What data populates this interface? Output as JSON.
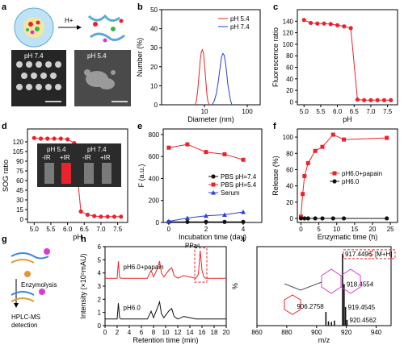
{
  "panel_labels": [
    "a",
    "b",
    "c",
    "d",
    "e",
    "f",
    "g",
    "h",
    "i"
  ],
  "panel_a": {
    "trigger": "H+",
    "tem_labels": [
      "pH 7.4",
      "pH 5.4"
    ]
  },
  "panel_d": {
    "inset_groups": [
      "pH 5.4",
      "pH 7.4"
    ],
    "inset_lanes": [
      "-IR",
      "+IR",
      "-IR",
      "+IR"
    ]
  },
  "panel_g": {
    "steps": [
      "Enzymolysis",
      "HPLC-MS",
      "detection"
    ]
  },
  "colors": {
    "red": "#e8242a",
    "blue": "#2a3fd6",
    "black": "#111111",
    "magenta": "#d93ad3"
  },
  "chart_data": [
    {
      "id": "b",
      "type": "line",
      "xlabel": "Diameter (nm)",
      "ylabel": "Number (%)",
      "xscale": "log",
      "xlim": [
        1,
        200
      ],
      "ylim": [
        0,
        50
      ],
      "xticks": [
        "10",
        "100"
      ],
      "yticks": [
        "0",
        "10",
        "20",
        "30",
        "40",
        "50"
      ],
      "legend_position": "top-right",
      "series": [
        {
          "name": "pH 5.4",
          "color": "#e8242a",
          "x": [
            6.0,
            6.5,
            7.0,
            7.5,
            8.0,
            8.5,
            9.0,
            9.5,
            10.0,
            10.5,
            11.0,
            11.5,
            12.0,
            13.0
          ],
          "y": [
            0,
            2,
            8,
            16,
            24,
            28,
            29,
            27,
            22,
            16,
            10,
            5,
            2,
            0
          ]
        },
        {
          "name": "pH 7.4",
          "color": "#2a3fd6",
          "x": [
            15,
            17,
            19,
            21,
            23,
            25,
            27,
            29,
            31,
            33,
            35,
            38,
            41,
            44
          ],
          "y": [
            0,
            2,
            6,
            12,
            19,
            25,
            27,
            26,
            22,
            17,
            11,
            6,
            2,
            0
          ]
        }
      ]
    },
    {
      "id": "c",
      "type": "scatter",
      "xlabel": "pH",
      "ylabel": "Fluorescence ratio",
      "xlim": [
        4.8,
        7.8
      ],
      "ylim": [
        -5,
        160
      ],
      "xticks": [
        "5.0",
        "5.5",
        "6.0",
        "6.5",
        "7.0",
        "7.5"
      ],
      "yticks": [
        "0",
        "20",
        "40",
        "60",
        "80",
        "100",
        "120",
        "140"
      ],
      "series": [
        {
          "name": "",
          "color": "#e8242a",
          "x": [
            5.0,
            5.2,
            5.4,
            5.6,
            5.8,
            6.0,
            6.2,
            6.4,
            6.6,
            6.8,
            7.0,
            7.2,
            7.4,
            7.6
          ],
          "y": [
            142,
            137,
            136,
            136,
            135,
            133,
            131,
            128,
            4,
            3,
            3,
            3,
            3,
            3
          ]
        }
      ]
    },
    {
      "id": "d",
      "type": "scatter",
      "xlabel": "pH",
      "ylabel": "SOG ratio",
      "xlim": [
        4.8,
        7.8
      ],
      "ylim": [
        -5,
        140
      ],
      "xticks": [
        "5.0",
        "5.5",
        "6.0",
        "6.5",
        "7.0",
        "7.5"
      ],
      "yticks": [
        "0",
        "15",
        "30",
        "45",
        "60",
        "75",
        "90",
        "105",
        "120"
      ],
      "series": [
        {
          "name": "",
          "color": "#e8242a",
          "x": [
            5.0,
            5.2,
            5.4,
            5.6,
            5.8,
            6.0,
            6.2,
            6.4,
            6.6,
            6.8,
            7.0,
            7.2,
            7.4,
            7.6
          ],
          "y": [
            126,
            125,
            125,
            125,
            125,
            124,
            118,
            12,
            7,
            5,
            4,
            4,
            4,
            4
          ]
        }
      ]
    },
    {
      "id": "e",
      "type": "line",
      "xlabel": "Incubation time (day)",
      "ylabel": "F (a.u.)",
      "xlim": [
        -0.3,
        5
      ],
      "ylim": [
        0,
        850
      ],
      "xticks": [
        "0",
        "2",
        "4"
      ],
      "yticks": [
        "0",
        "200",
        "400",
        "600",
        "800"
      ],
      "legend_position": "center-right",
      "series": [
        {
          "name": "PBS pH=7.4",
          "color": "#111111",
          "marker": "circle",
          "x": [
            0,
            1,
            2,
            3,
            4
          ],
          "y": [
            5,
            5,
            5,
            5,
            5
          ]
        },
        {
          "name": "PBS pH=5.4",
          "color": "#e8242a",
          "marker": "square",
          "x": [
            0,
            1,
            2,
            3,
            4
          ],
          "y": [
            680,
            710,
            640,
            620,
            570
          ]
        },
        {
          "name": "Serum",
          "color": "#2a3fd6",
          "marker": "triangle",
          "x": [
            0,
            1,
            2,
            3,
            4
          ],
          "y": [
            10,
            40,
            60,
            70,
            95
          ]
        }
      ]
    },
    {
      "id": "f",
      "type": "line",
      "xlabel": "Enzymatic time (h)",
      "ylabel": "Release (%)",
      "xlim": [
        -1,
        27
      ],
      "ylim": [
        -5,
        110
      ],
      "xticks": [
        "0",
        "5",
        "10",
        "15",
        "20",
        "25"
      ],
      "yticks": [
        "0",
        "20",
        "40",
        "60",
        "80",
        "100"
      ],
      "legend_position": "center-right",
      "series": [
        {
          "name": "pH6.0+papain",
          "color": "#e8242a",
          "marker": "square",
          "x": [
            0,
            0.5,
            1,
            2,
            4,
            6,
            9,
            12,
            24
          ],
          "y": [
            2,
            30,
            52,
            68,
            83,
            88,
            103,
            97,
            99
          ]
        },
        {
          "name": "pH6.0",
          "color": "#111111",
          "marker": "circle",
          "x": [
            0,
            1,
            2,
            4,
            6,
            9,
            12,
            24
          ],
          "y": [
            0,
            0,
            0,
            0,
            0,
            0,
            0,
            0
          ]
        }
      ]
    },
    {
      "id": "h",
      "type": "line",
      "xlabel": "Retention time (min)",
      "ylabel": "Intensity (×10⁵mAU)",
      "xlim": [
        0,
        20
      ],
      "ylim": [
        0,
        6
      ],
      "xticks": [
        "0",
        "2",
        "4",
        "6",
        "8",
        "10",
        "12",
        "14",
        "16",
        "18",
        "20"
      ],
      "yticks": [
        "0",
        "1",
        "2",
        "3",
        "4",
        "5",
        "6"
      ],
      "annotations": [
        "PPaᵃ"
      ],
      "series": [
        {
          "name": "pH6.0+papain",
          "color": "#e8242a",
          "x": [
            0,
            2,
            2.2,
            2.4,
            2.6,
            7,
            7.6,
            8,
            8.6,
            9,
            9.3,
            9.7,
            10.5,
            11,
            11.4,
            12,
            13,
            14,
            15,
            15.4,
            15.7,
            16,
            16.3,
            16.6,
            17,
            20
          ],
          "y": [
            3.6,
            3.6,
            4.9,
            3.7,
            3.6,
            3.6,
            4.2,
            3.7,
            4.3,
            4.9,
            4.0,
            3.7,
            4.2,
            4.4,
            3.8,
            3.6,
            3.8,
            3.7,
            3.6,
            3.9,
            5.7,
            4.2,
            3.7,
            3.6,
            3.6,
            3.6
          ]
        },
        {
          "name": "pH6.0",
          "color": "#111111",
          "x": [
            0,
            2,
            2.2,
            2.4,
            2.6,
            7,
            7.6,
            8,
            8.6,
            9,
            9.3,
            9.7,
            10.5,
            11,
            11.4,
            12,
            13,
            14,
            15,
            20
          ],
          "y": [
            0.5,
            0.5,
            1.7,
            0.6,
            0.5,
            0.5,
            1.1,
            0.6,
            1.3,
            1.8,
            0.9,
            0.6,
            1.1,
            1.3,
            0.7,
            0.5,
            0.7,
            0.6,
            0.5,
            0.5
          ]
        }
      ]
    },
    {
      "id": "i",
      "type": "bar",
      "xlabel": "m/z",
      "ylabel": "%",
      "xlim": [
        860,
        950
      ],
      "ylim": [
        0,
        110
      ],
      "xticks": [
        "860",
        "880",
        "900",
        "920",
        "940"
      ],
      "highlight": "[M+H]",
      "peaks": [
        {
          "mz": 906.2758,
          "rel": 19,
          "label": "906.2758"
        },
        {
          "mz": 917.4496,
          "rel": 100,
          "label": "917.4496"
        },
        {
          "mz": 918.4554,
          "rel": 58,
          "label": "918.4554"
        },
        {
          "mz": 919.4545,
          "rel": 26,
          "label": "919.4545"
        },
        {
          "mz": 920.4562,
          "rel": 8,
          "label": "920.4562"
        },
        {
          "mz": 908,
          "rel": 6,
          "label": ""
        },
        {
          "mz": 910,
          "rel": 5,
          "label": ""
        },
        {
          "mz": 912,
          "rel": 7,
          "label": ""
        }
      ]
    }
  ]
}
